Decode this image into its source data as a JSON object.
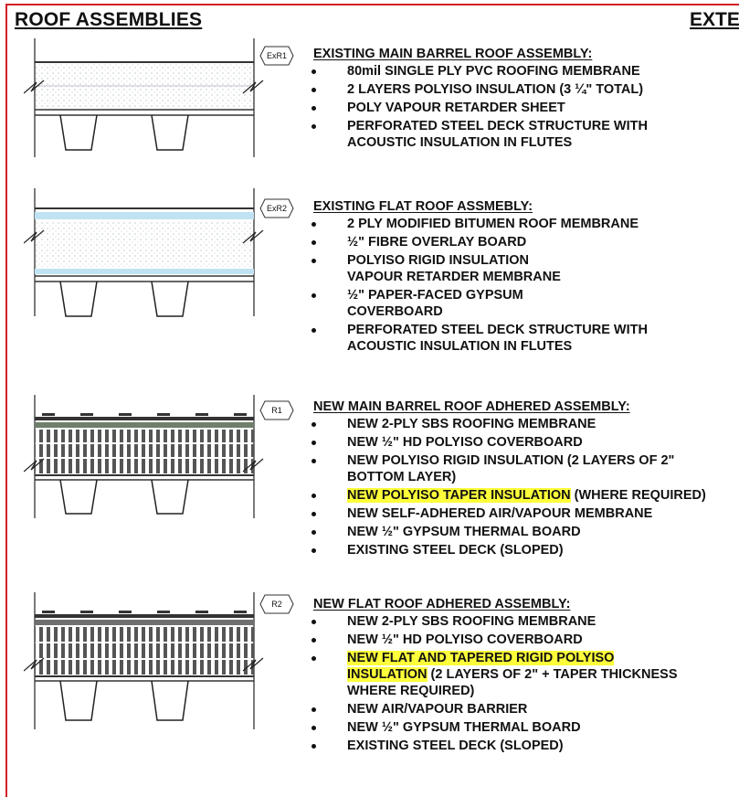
{
  "header": {
    "title": "ROOF ASSEMBLIES",
    "title_right_cut": "EXTE"
  },
  "colors": {
    "frame": "#d31f26",
    "highlight": "#fdff3a",
    "insulation_blue": "#bfe3f2"
  },
  "assemblies": [
    {
      "tag": "ExR1",
      "title": "EXISTING MAIN BARREL ROOF ASSEMBLY:",
      "items": [
        {
          "text": "80mil SINGLE PLY PVC ROOFING MEMBRANE"
        },
        {
          "text": "2 LAYERS POLYISO INSULATION (3 ¼\" TOTAL)"
        },
        {
          "text": "POLY VAPOUR RETARDER SHEET"
        },
        {
          "text": "PERFORATED STEEL DECK STRUCTURE WITH ACOUSTIC INSULATION IN FLUTES"
        }
      ]
    },
    {
      "tag": "ExR2",
      "title": "EXISTING FLAT ROOF ASSMEBLY:",
      "items": [
        {
          "text": "2 PLY MODIFIED BITUMEN ROOF MEMBRANE"
        },
        {
          "text": "½\" FIBRE OVERLAY BOARD"
        },
        {
          "text": "POLYISO RIGID INSULATION",
          "text2": "VAPOUR RETARDER MEMBRANE"
        },
        {
          "text": "½\" PAPER-FACED GYPSUM COVERBOARD"
        },
        {
          "text": "PERFORATED STEEL DECK STRUCTURE WITH ACOUSTIC INSULATION IN FLUTES"
        }
      ]
    },
    {
      "tag": "R1",
      "title": "NEW MAIN BARREL ROOF ADHERED ASSEMBLY:",
      "items": [
        {
          "text": "NEW 2-PLY SBS ROOFING MEMBRANE"
        },
        {
          "text": "NEW ½\" HD POLYISO COVERBOARD"
        },
        {
          "text": "NEW POLYISO RIGID INSULATION (2 LAYERS OF 2\" BOTTOM LAYER)"
        },
        {
          "highlight": "NEW POLYISO TAPER INSULATION",
          "text": " (WHERE REQUIRED)"
        },
        {
          "text": "NEW SELF-ADHERED AIR/VAPOUR MEMBRANE"
        },
        {
          "text": "NEW  ½\" GYPSUM THERMAL BOARD"
        },
        {
          "text": "EXISTING STEEL DECK (SLOPED)"
        }
      ]
    },
    {
      "tag": "R2",
      "title": "NEW FLAT ROOF ADHERED ASSEMBLY:",
      "items": [
        {
          "text": "NEW 2-PLY SBS ROOFING MEMBRANE"
        },
        {
          "text": "NEW ½\" HD POLYISO COVERBOARD"
        },
        {
          "highlight": "NEW FLAT AND TAPERED RIGID POLYISO INSULATION",
          "text": " (2 LAYERS OF 2\" + TAPER THICKNESS WHERE REQUIRED)"
        },
        {
          "text": "NEW AIR/VAPOUR BARRIER"
        },
        {
          "text": "NEW ½\" GYPSUM THERMAL BOARD"
        },
        {
          "text": "EXISTING STEEL DECK (SLOPED)"
        }
      ]
    }
  ]
}
